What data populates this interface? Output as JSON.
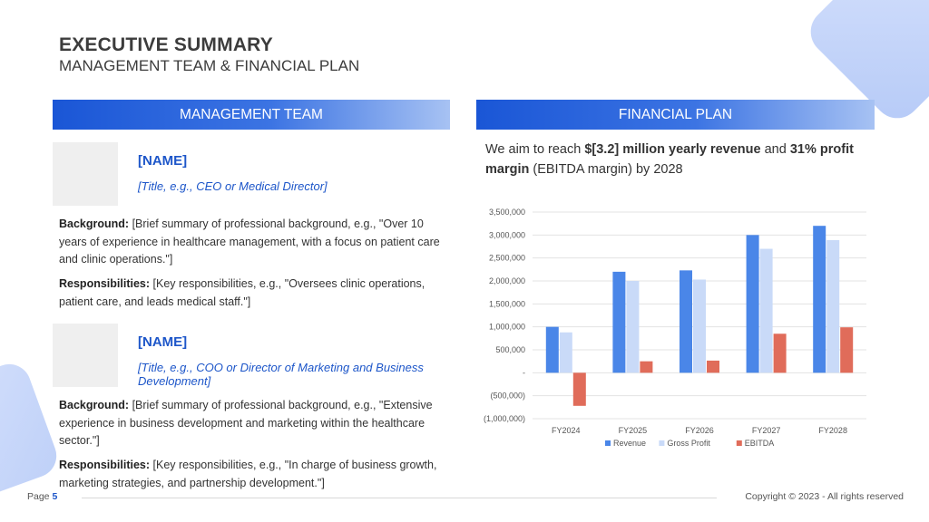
{
  "header": {
    "title": "EXECUTIVE SUMMARY",
    "subtitle": "MANAGEMENT TEAM & FINANCIAL PLAN"
  },
  "management": {
    "heading": "MANAGEMENT TEAM",
    "members": [
      {
        "name": "[NAME]",
        "title": "[Title, e.g., CEO or Medical Director]",
        "background_label": "Background:",
        "background": " [Brief summary of professional background, e.g., \"Over 10 years of experience in healthcare management, with a focus on patient care and clinic operations.\"]",
        "responsibilities_label": "Responsibilities:",
        "responsibilities": " [Key responsibilities, e.g., \"Oversees clinic operations, patient care, and leads medical staff.\"]"
      },
      {
        "name": "[NAME]",
        "title": "[Title, e.g., COO or Director of Marketing and Business Development]",
        "background_label": "Background:",
        "background": " [Brief summary of professional background, e.g., \"Extensive experience in business development and marketing within the healthcare sector.\"]",
        "responsibilities_label": "Responsibilities:",
        "responsibilities": " [Key responsibilities, e.g., \"In charge of business growth, marketing strategies, and partnership development.\"]"
      }
    ]
  },
  "financial": {
    "heading": "FINANCIAL PLAN",
    "text_1": "We aim to reach ",
    "text_bold_1": "$[3.2] million yearly revenue",
    "text_2": " and ",
    "text_bold_2": "31% profit margin",
    "text_3": " (EBITDA margin) by 2028"
  },
  "chart_data": {
    "type": "bar",
    "categories": [
      "FY2024",
      "FY2025",
      "FY2026",
      "FY2027",
      "FY2028"
    ],
    "series": [
      {
        "name": "Revenue",
        "color": "#4a86e8",
        "values": [
          1000000,
          2200000,
          2230000,
          3000000,
          3200000
        ]
      },
      {
        "name": "Gross Profit",
        "color": "#c9daf8",
        "values": [
          880000,
          2000000,
          2030000,
          2700000,
          2890000
        ]
      },
      {
        "name": "EBITDA",
        "color": "#e06c5a",
        "values": [
          -720000,
          250000,
          265000,
          850000,
          990000
        ]
      }
    ],
    "ylim": [
      -1000000,
      3500000
    ],
    "yticks": [
      3500000,
      3000000,
      2500000,
      2000000,
      1500000,
      1000000,
      500000,
      0,
      -500000,
      -1000000
    ],
    "ytick_labels": [
      "3,500,000",
      "3,000,000",
      "2,500,000",
      "2,000,000",
      "1,500,000",
      "1,000,000",
      "500,000",
      "-",
      "(500,000)",
      "(1,000,000)"
    ],
    "grid": true,
    "legend": "bottom"
  },
  "footer": {
    "page_label": "Page",
    "page_number": "5",
    "copyright": "Copyright © 2023 - All rights reserved"
  }
}
